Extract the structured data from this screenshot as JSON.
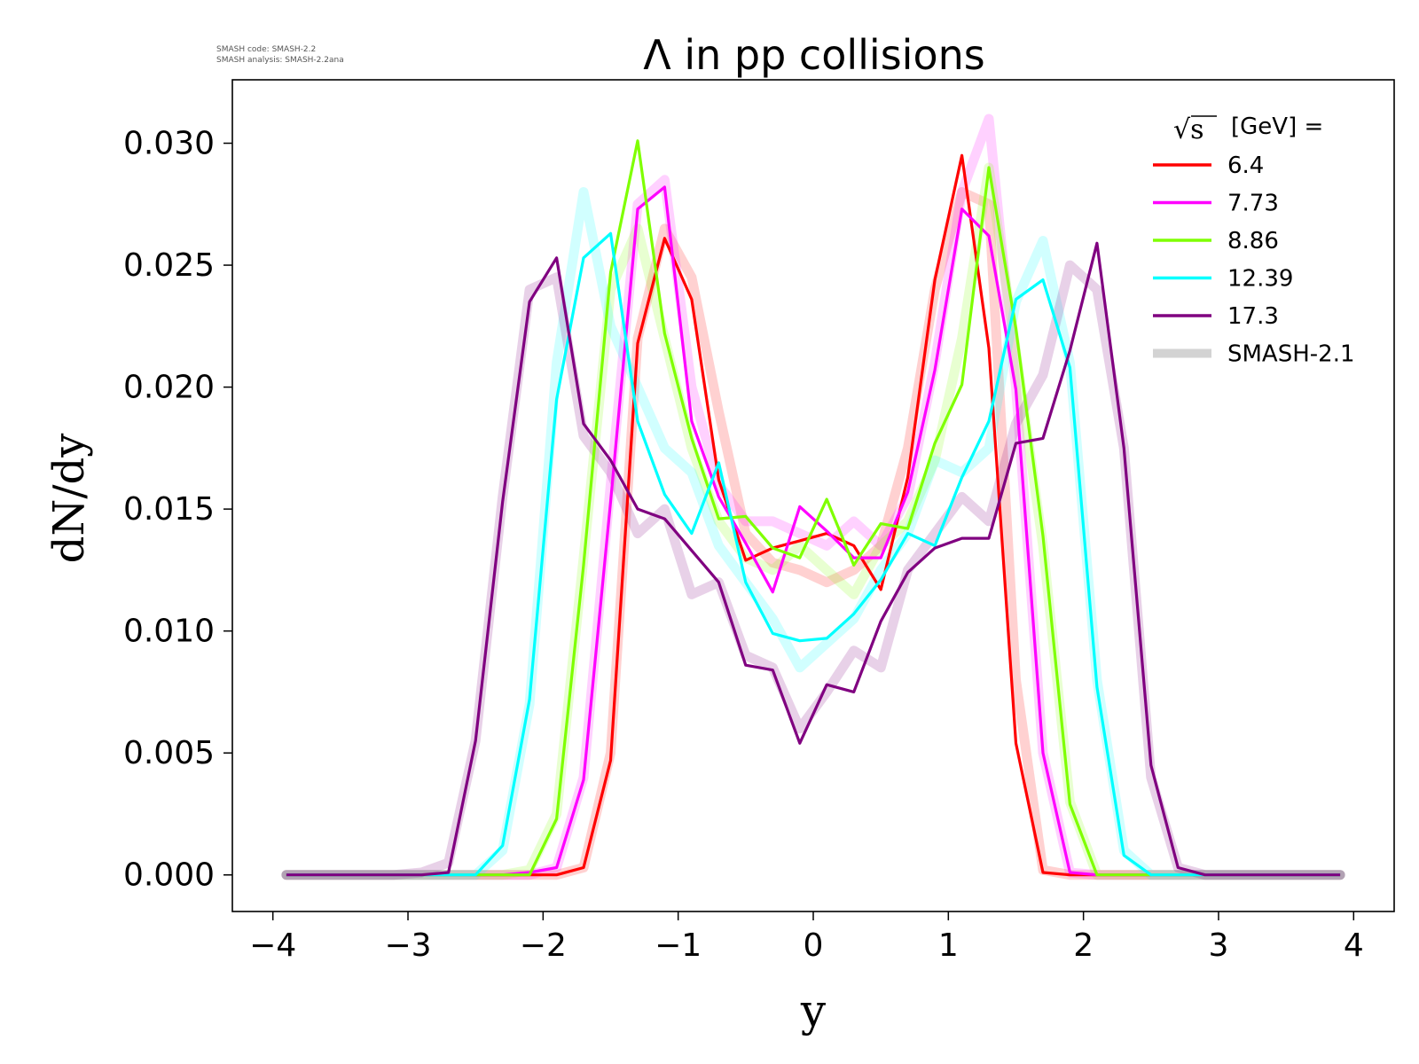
{
  "watermark": {
    "line1": "SMASH code:      SMASH-2.2",
    "line2": "SMASH analysis: SMASH-2.2ana"
  },
  "chart_data": {
    "type": "line",
    "title": "Λ in pp collisions",
    "xlabel": "y",
    "ylabel": "dN/dy",
    "xlim": [
      -4.3,
      4.3
    ],
    "ylim": [
      -0.0015,
      0.0326
    ],
    "xticks": [
      -4,
      -3,
      -2,
      -1,
      0,
      1,
      2,
      3,
      4
    ],
    "xtick_labels": [
      "−4",
      "−3",
      "−2",
      "−1",
      "0",
      "1",
      "2",
      "3",
      "4"
    ],
    "yticks": [
      0.0,
      0.005,
      0.01,
      0.015,
      0.02,
      0.025,
      0.03
    ],
    "ytick_labels": [
      "0.000",
      "0.005",
      "0.010",
      "0.015",
      "0.020",
      "0.025",
      "0.030"
    ],
    "grid": false,
    "legend": {
      "placement": "top-right",
      "title_symbol": "√s",
      "title_text": "[GeV] ="
    },
    "x": [
      -3.9,
      -3.7,
      -3.5,
      -3.3,
      -3.1,
      -2.9,
      -2.7,
      -2.5,
      -2.3,
      -2.1,
      -1.9,
      -1.7,
      -1.5,
      -1.3,
      -1.1,
      -0.9,
      -0.7,
      -0.5,
      -0.3,
      -0.1,
      0.1,
      0.3,
      0.5,
      0.7,
      0.9,
      1.1,
      1.3,
      1.5,
      1.7,
      1.9,
      2.1,
      2.3,
      2.5,
      2.7,
      2.9,
      3.1,
      3.3,
      3.5,
      3.7,
      3.9
    ],
    "series": [
      {
        "name": "6.4",
        "color": "#ff0000",
        "values": [
          0,
          0,
          0,
          0,
          0,
          0,
          0,
          0,
          0,
          0,
          0,
          0.0003,
          0.0047,
          0.0218,
          0.0261,
          0.0236,
          0.0162,
          0.0129,
          0.0134,
          0.0137,
          0.014,
          0.0135,
          0.0117,
          0.0163,
          0.0244,
          0.0295,
          0.0216,
          0.0054,
          0.0001,
          0,
          0,
          0,
          0,
          0,
          0,
          0,
          0,
          0,
          0,
          0
        ]
      },
      {
        "name": "7.73",
        "color": "#ff00ff",
        "values": [
          0,
          0,
          0,
          0,
          0,
          0,
          0,
          0,
          0,
          0.0001,
          0.0003,
          0.0039,
          0.0153,
          0.0273,
          0.0282,
          0.0186,
          0.0155,
          0.0136,
          0.0116,
          0.0151,
          0.0141,
          0.013,
          0.013,
          0.0157,
          0.0207,
          0.0273,
          0.0262,
          0.0199,
          0.005,
          0.0001,
          0,
          0,
          0,
          0,
          0,
          0,
          0,
          0,
          0,
          0
        ]
      },
      {
        "name": "8.86",
        "color": "#7fff00",
        "values": [
          0,
          0,
          0,
          0,
          0,
          0,
          0,
          0,
          0,
          0,
          0.0023,
          0.0127,
          0.0247,
          0.0301,
          0.0222,
          0.0179,
          0.0146,
          0.0147,
          0.0134,
          0.013,
          0.0154,
          0.0127,
          0.0144,
          0.0142,
          0.0177,
          0.0201,
          0.029,
          0.0224,
          0.0139,
          0.0029,
          0,
          0,
          0,
          0,
          0,
          0,
          0,
          0,
          0,
          0
        ]
      },
      {
        "name": "12.39",
        "color": "#00ffff",
        "values": [
          0,
          0,
          0,
          0,
          0,
          0,
          0,
          0,
          0.0012,
          0.0072,
          0.0195,
          0.0253,
          0.0263,
          0.0186,
          0.0156,
          0.014,
          0.0169,
          0.012,
          0.0099,
          0.0096,
          0.0097,
          0.0107,
          0.0121,
          0.014,
          0.0135,
          0.0163,
          0.0186,
          0.0236,
          0.0244,
          0.0208,
          0.0077,
          0.0008,
          0,
          0,
          0,
          0,
          0,
          0,
          0,
          0
        ]
      },
      {
        "name": "17.3",
        "color": "#800080",
        "values": [
          0,
          0,
          0,
          0,
          0,
          0,
          0.0001,
          0.0055,
          0.0153,
          0.0235,
          0.0253,
          0.0185,
          0.017,
          0.015,
          0.0146,
          0.0133,
          0.012,
          0.0086,
          0.0084,
          0.0054,
          0.0078,
          0.0075,
          0.0104,
          0.0124,
          0.0134,
          0.0138,
          0.0138,
          0.0177,
          0.0179,
          0.0215,
          0.0259,
          0.0175,
          0.0045,
          0.0003,
          0,
          0,
          0,
          0,
          0,
          0
        ]
      }
    ],
    "reference_series": {
      "name": "SMASH-2.1",
      "color": "#d3d3d3",
      "curves": [
        {
          "color": "#ff0000",
          "values": [
            0,
            0,
            0,
            0,
            0,
            0,
            0,
            0,
            0,
            0,
            0,
            0.0003,
            0.005,
            0.022,
            0.0265,
            0.0245,
            0.019,
            0.014,
            0.0128,
            0.0125,
            0.012,
            0.0125,
            0.0135,
            0.0175,
            0.024,
            0.028,
            0.0275,
            0.008,
            0.0002,
            0,
            0,
            0,
            0,
            0,
            0,
            0,
            0,
            0,
            0,
            0
          ]
        },
        {
          "color": "#ff00ff",
          "values": [
            0,
            0,
            0,
            0,
            0,
            0,
            0,
            0,
            0,
            0,
            0.0003,
            0.004,
            0.016,
            0.0275,
            0.0285,
            0.02,
            0.016,
            0.0145,
            0.0145,
            0.014,
            0.0135,
            0.0145,
            0.0135,
            0.0155,
            0.021,
            0.028,
            0.031,
            0.02,
            0.005,
            0.0001,
            0,
            0,
            0,
            0,
            0,
            0,
            0,
            0,
            0,
            0
          ]
        },
        {
          "color": "#7fff00",
          "values": [
            0,
            0,
            0,
            0,
            0,
            0,
            0,
            0,
            0,
            0.0002,
            0.0025,
            0.013,
            0.024,
            0.0265,
            0.022,
            0.0175,
            0.0145,
            0.013,
            0.0125,
            0.0135,
            0.0125,
            0.0115,
            0.0135,
            0.0145,
            0.017,
            0.022,
            0.029,
            0.0215,
            0.0135,
            0.003,
            0,
            0,
            0,
            0,
            0,
            0,
            0,
            0,
            0,
            0
          ]
        },
        {
          "color": "#00ffff",
          "values": [
            0,
            0,
            0,
            0,
            0,
            0,
            0,
            0,
            0.001,
            0.007,
            0.021,
            0.028,
            0.0225,
            0.02,
            0.0175,
            0.0165,
            0.0135,
            0.012,
            0.0105,
            0.0085,
            0.0095,
            0.0105,
            0.0125,
            0.014,
            0.017,
            0.0165,
            0.0175,
            0.0235,
            0.026,
            0.021,
            0.008,
            0.001,
            0,
            0,
            0,
            0,
            0,
            0,
            0,
            0
          ]
        },
        {
          "color": "#800080",
          "values": [
            0,
            0,
            0,
            0,
            0,
            0.0001,
            0.0005,
            0.0055,
            0.0155,
            0.024,
            0.0245,
            0.018,
            0.0165,
            0.014,
            0.015,
            0.0115,
            0.012,
            0.009,
            0.0085,
            0.006,
            0.0075,
            0.0092,
            0.0085,
            0.0125,
            0.014,
            0.0155,
            0.0145,
            0.0185,
            0.0205,
            0.025,
            0.024,
            0.0175,
            0.004,
            0.0003,
            0,
            0,
            0,
            0,
            0,
            0
          ]
        }
      ]
    }
  }
}
